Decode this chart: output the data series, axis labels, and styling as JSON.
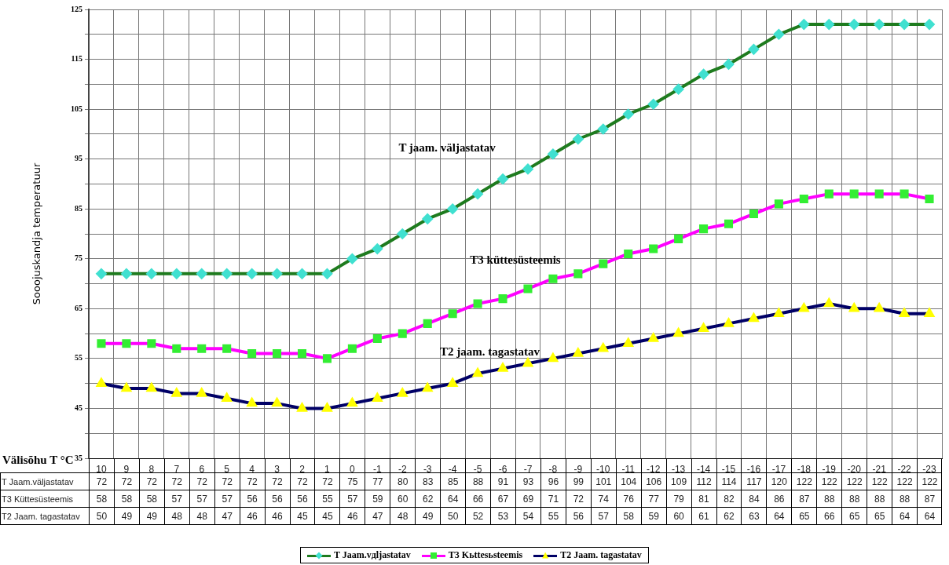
{
  "chart_data": {
    "type": "line",
    "xlabel": "Välisõhu T °C",
    "ylabel": "Sooojuskandja temperatuur",
    "categories": [
      "10",
      "9",
      "8",
      "7",
      "6",
      "5",
      "4",
      "3",
      "2",
      "1",
      "0",
      "-1",
      "-2",
      "-3",
      "-4",
      "-5",
      "-6",
      "-7",
      "-8",
      "-9",
      "-10",
      "-11",
      "-12",
      "-13",
      "-14",
      "-15",
      "-16",
      "-17",
      "-18",
      "-19",
      "-20",
      "-21",
      "-22",
      "-23"
    ],
    "series": [
      {
        "name": "T Jaam.vдljastatav",
        "color": "#1e7b1e",
        "marker": "diamond",
        "colors": [
          "#40e0d0",
          "#40e0d0",
          "#40e0d0",
          "#40e0d0",
          "#40e0d0",
          "#40e0d0",
          "#40e0d0",
          "#40e0d0",
          "#40e0d0",
          "#40e0d0",
          "#40e0d0",
          "#40e0d0",
          "#40e0d0",
          "#40e0d0",
          "#40e0d0",
          "#40e0d0",
          "#40e0d0",
          "#40e0d0",
          "#40e0d0",
          "#40e0d0",
          "#40e0d0",
          "#40e0d0",
          "#40e0d0",
          "#40e0d0",
          "#40e0d0",
          "#40e0d0",
          "#40e0d0",
          "#40e0d0",
          "#40e0d0",
          "#40e0d0",
          "#40e0d0",
          "#40e0d0",
          "#40e0d0",
          "#40e0d0"
        ],
        "values": [
          72,
          72,
          72,
          72,
          72,
          72,
          72,
          72,
          72,
          72,
          75,
          77,
          80,
          83,
          85,
          88,
          91,
          93,
          96,
          99,
          101,
          104,
          106,
          109,
          112,
          114,
          117,
          120,
          122,
          122,
          122,
          122,
          122,
          122
        ]
      },
      {
        "name": "T3 Kьttesьsteemis",
        "color": "#ff00ff",
        "marker": "square",
        "colors": [
          "#33ee33",
          "#33ee33",
          "#33ee33",
          "#33ee33",
          "#33ee33",
          "#33ee33",
          "#33ee33",
          "#33ee33",
          "#33ee33",
          "#33ee33",
          "#33ee33",
          "#33ee33",
          "#33ee33",
          "#33ee33",
          "#33ee33",
          "#33ee33",
          "#33ee33",
          "#33ee33",
          "#33ee33",
          "#33ee33",
          "#33ee33",
          "#33ee33",
          "#33ee33",
          "#33ee33",
          "#33ee33",
          "#33ee33",
          "#33ee33",
          "#33ee33",
          "#33ee33",
          "#33ee33",
          "#33ee33",
          "#33ee33",
          "#33ee33",
          "#33ee33"
        ],
        "values": [
          58,
          58,
          58,
          57,
          57,
          57,
          56,
          56,
          56,
          55,
          57,
          59,
          60,
          62,
          64,
          66,
          67,
          69,
          71,
          72,
          74,
          76,
          77,
          79,
          81,
          82,
          84,
          86,
          87,
          88,
          88,
          88,
          88,
          87
        ]
      },
      {
        "name": "T2 Jaam. tagastatav",
        "color": "#000066",
        "marker": "triangle",
        "colors": [
          "#ffff00",
          "#ffff00",
          "#ffff00",
          "#ffff00",
          "#ffff00",
          "#ffff00",
          "#ffff00",
          "#ffff00",
          "#ffff00",
          "#ffff00",
          "#ffff00",
          "#ffff00",
          "#ffff00",
          "#ffff00",
          "#ffff00",
          "#ffff00",
          "#ffff00",
          "#ffff00",
          "#ffff00",
          "#ffff00",
          "#ffff00",
          "#ffff00",
          "#ffff00",
          "#ffff00",
          "#ffff00",
          "#ffff00",
          "#ffff00",
          "#ffff00",
          "#ffff00",
          "#ffff00",
          "#ffff00",
          "#ffff00",
          "#ffff00",
          "#ffff00"
        ],
        "values": [
          50,
          49,
          49,
          48,
          48,
          47,
          46,
          46,
          45,
          45,
          46,
          47,
          48,
          49,
          50,
          52,
          53,
          54,
          55,
          56,
          57,
          58,
          59,
          60,
          61,
          62,
          63,
          64,
          65,
          66,
          65,
          65,
          64,
          64
        ]
      }
    ],
    "ylim": [
      35,
      125
    ],
    "yticks": [
      35,
      {
        "value": 40,
        "label": null
      },
      45,
      {
        "value": 50,
        "label": null
      },
      55,
      {
        "value": 60,
        "label": null
      },
      65,
      {
        "value": 70,
        "label": null
      },
      75,
      {
        "value": 80,
        "label": null
      },
      85,
      {
        "value": 90,
        "label": null
      },
      95,
      {
        "value": 100,
        "label": null
      },
      105,
      {
        "value": 110,
        "label": null
      },
      115,
      {
        "value": 120,
        "label": null
      },
      125
    ],
    "grid": true,
    "legend": "bottom",
    "data_labels": true,
    "line_style": "solid",
    "annotations": [
      "T jaam. väljastatav",
      "T3 küttesüsteemis",
      "T2 jaam. tagastatav",
      "T Jaam.väljastatav",
      "T3 Küttesüsteemis",
      "T2 Jaam. tagastatav"
    ]
  }
}
